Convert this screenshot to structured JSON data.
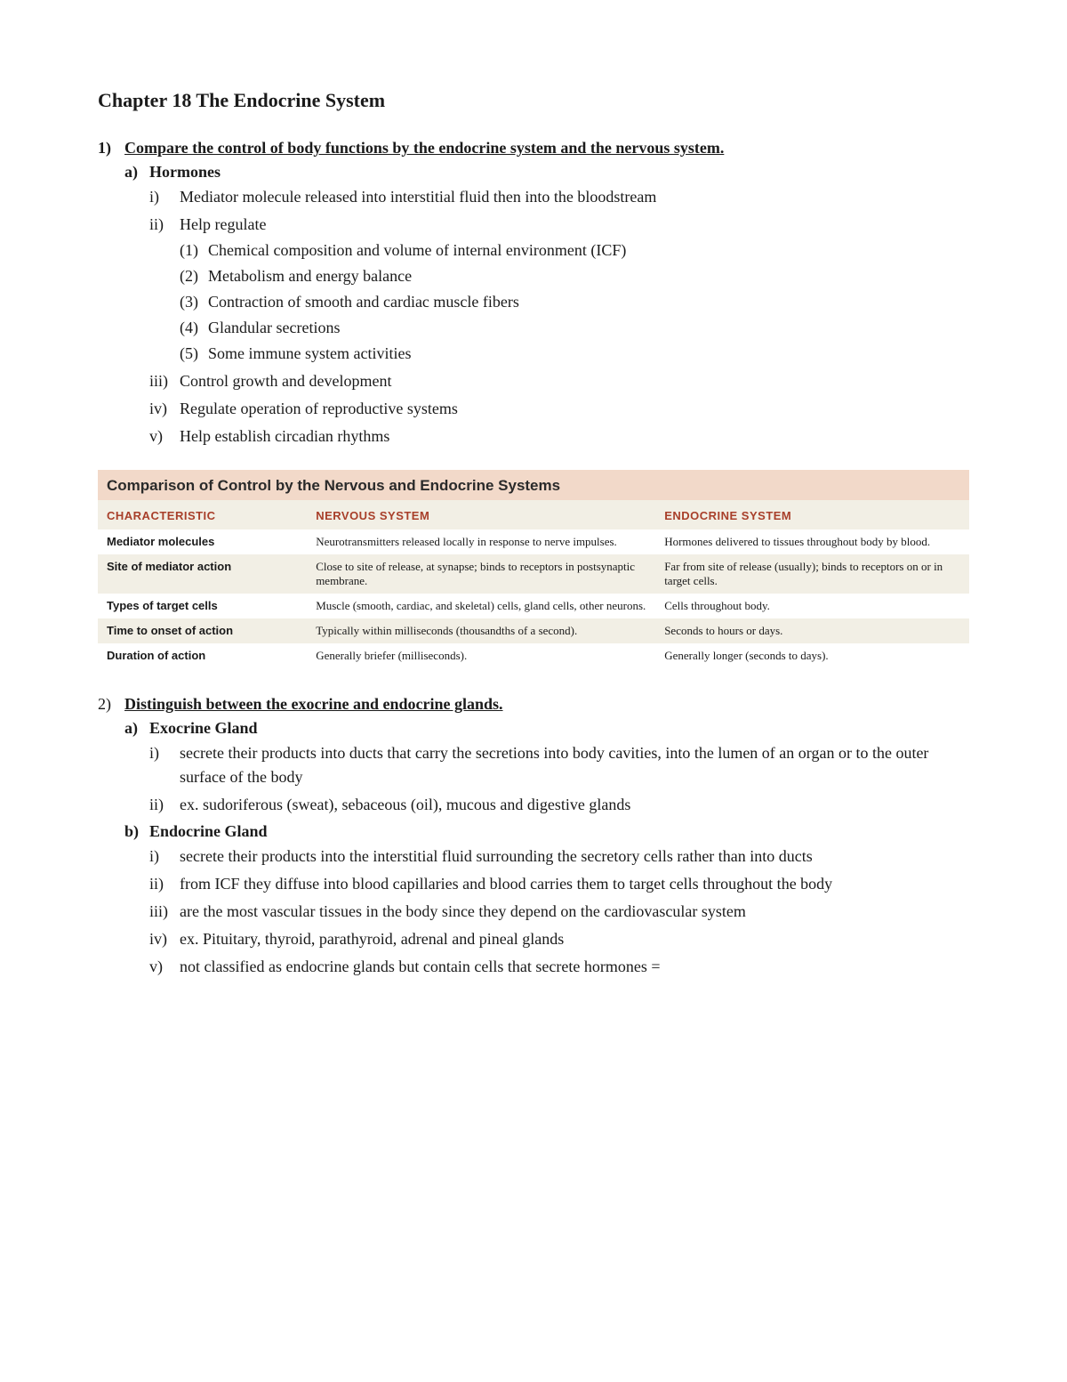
{
  "chapter_title": "Chapter 18 The Endocrine System",
  "q1": {
    "num": "1)",
    "text": "Compare the control of body functions by the endocrine system and the nervous system.",
    "a": {
      "num": "a)",
      "text": "Hormones",
      "i": {
        "num": "i)",
        "text": "Mediator molecule released into interstitial fluid then into the bloodstream"
      },
      "ii": {
        "num": "ii)",
        "text": "Help regulate",
        "p1": {
          "num": "(1)",
          "text": "Chemical composition and volume of internal environment (ICF)"
        },
        "p2": {
          "num": "(2)",
          "text": "Metabolism and energy balance"
        },
        "p3": {
          "num": "(3)",
          "text": "Contraction of smooth and cardiac muscle fibers"
        },
        "p4": {
          "num": "(4)",
          "text": "Glandular secretions"
        },
        "p5": {
          "num": "(5)",
          "text": "Some immune system activities"
        }
      },
      "iii": {
        "num": "iii)",
        "text": "Control growth and development"
      },
      "iv": {
        "num": "iv)",
        "text": "Regulate operation of reproductive systems"
      },
      "v": {
        "num": "v)",
        "text": "Help establish circadian rhythms"
      }
    }
  },
  "comparison_table": {
    "title": "Comparison of Control by the Nervous and Endocrine Systems",
    "title_bg": "#f2d9c9",
    "header_bg": "#f2efe5",
    "header_color": "#a83f2a",
    "alt_row_bg": "#f2efe5",
    "headers": {
      "c1": "CHARACTERISTIC",
      "c2": "NERVOUS SYSTEM",
      "c3": "ENDOCRINE SYSTEM"
    },
    "rows": {
      "r1": {
        "c1": "Mediator molecules",
        "c2": "Neurotransmitters released locally in response to nerve impulses.",
        "c3": "Hormones delivered to tissues throughout body by blood."
      },
      "r2": {
        "c1": "Site of mediator action",
        "c2": "Close to site of release, at synapse; binds to receptors in postsynaptic membrane.",
        "c3": "Far from site of release (usually); binds to receptors on or in target cells."
      },
      "r3": {
        "c1": "Types of target cells",
        "c2": "Muscle (smooth, cardiac, and skeletal) cells, gland cells, other neurons.",
        "c3": "Cells throughout body."
      },
      "r4": {
        "c1": "Time to onset of action",
        "c2": "Typically within milliseconds (thousandths of a second).",
        "c3": "Seconds to hours or days."
      },
      "r5": {
        "c1": "Duration of action",
        "c2": "Generally briefer (milliseconds).",
        "c3": "Generally longer (seconds to days)."
      }
    }
  },
  "q2": {
    "num": "2)",
    "text": "Distinguish between the exocrine and endocrine glands",
    "a": {
      "num": "a)",
      "text": "Exocrine Gland",
      "i": {
        "num": "i)",
        "text": "secrete their products into ducts that carry the secretions into body cavities, into the lumen of an organ or to the outer surface of the body"
      },
      "ii": {
        "num": "ii)",
        "text": "ex. sudoriferous (sweat), sebaceous (oil), mucous and digestive glands"
      }
    },
    "b": {
      "num": "b)",
      "text": "Endocrine Gland",
      "i": {
        "num": "i)",
        "text": "secrete their products into the interstitial fluid surrounding the secretory cells rather than into ducts"
      },
      "ii": {
        "num": "ii)",
        "text": "from ICF they diffuse into blood capillaries and blood carries them to target cells throughout the body"
      },
      "iii": {
        "num": "iii)",
        "text": "are the most vascular tissues in the body since they depend on the cardiovascular system"
      },
      "iv": {
        "num": "iv)",
        "text": "ex. Pituitary, thyroid, parathyroid, adrenal and pineal glands"
      },
      "v": {
        "num": "v)",
        "text": "not classified as endocrine glands but contain cells that secrete hormones ="
      }
    }
  }
}
